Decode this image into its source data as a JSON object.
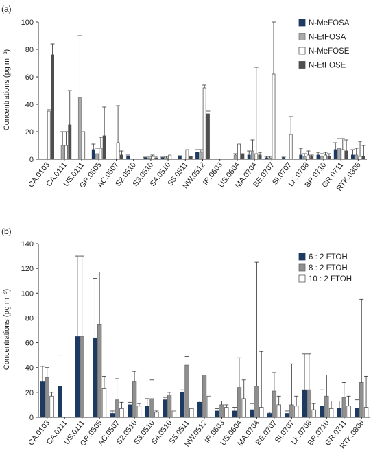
{
  "chart_data": [
    {
      "type": "bar",
      "panel_label": "(a)",
      "ylabel": "Concentrations (pg m⁻³)",
      "ylim": [
        0,
        100
      ],
      "yticks": [
        "0",
        "20",
        "40",
        "60",
        "80",
        "100"
      ],
      "categories": [
        "CA.0103",
        "CA.0111",
        "US.0111",
        "GR.0505",
        "AC.0507",
        "S2.0510",
        "S3.0510",
        "S4.0510",
        "S5.0511",
        "NW.0512",
        "IR.0603",
        "US.0604",
        "MA.0704",
        "BE.0707",
        "SI.0707",
        "LK.0708",
        "BR.0710",
        "GR.0711",
        "RTK.0806"
      ],
      "legend_position": "top-right",
      "series": [
        {
          "name": "N-MeFOSA",
          "color": "#1d3a63",
          "edge": "#1d3a63",
          "values": [
            0,
            0,
            0,
            7,
            0,
            2,
            1,
            1,
            2,
            5,
            0,
            0,
            3,
            1,
            1,
            3,
            3,
            7,
            3
          ],
          "err": [
            0,
            0,
            0,
            4,
            0,
            1,
            0.5,
            0.5,
            0.5,
            2,
            0,
            0,
            3,
            1,
            0.5,
            5,
            2,
            5,
            4
          ]
        },
        {
          "name": "N-EtFOSA",
          "color": "#a9a9a9",
          "edge": "#7a7a7a",
          "values": [
            0,
            10,
            45,
            4,
            0,
            0,
            1,
            1,
            0,
            5,
            0,
            3,
            6,
            1,
            0,
            2,
            2,
            8,
            3
          ],
          "err": [
            0,
            10,
            45,
            4,
            0,
            0,
            1,
            1,
            0,
            2,
            0,
            1,
            8,
            1,
            0,
            2,
            2,
            7,
            5
          ]
        },
        {
          "name": "N-MeFOSE",
          "color": "#ffffff",
          "edge": "#555555",
          "values": [
            35,
            10,
            20,
            8,
            12,
            0,
            2,
            3,
            7,
            52,
            0,
            11,
            4,
            62,
            18,
            3,
            3,
            7,
            2
          ],
          "err": [
            1,
            10,
            0,
            8,
            27,
            0,
            1,
            0,
            0,
            2,
            0,
            0,
            63,
            38,
            13,
            3,
            2,
            8,
            11
          ]
        },
        {
          "name": "N-EtFOSE",
          "color": "#4e4e4e",
          "edge": "#4e4e4e",
          "values": [
            76,
            25,
            0,
            17,
            3,
            0,
            1,
            0,
            2,
            33,
            0,
            4,
            3,
            0,
            0,
            2,
            2,
            6,
            2
          ],
          "err": [
            8,
            25,
            0,
            21,
            3,
            0,
            1,
            0,
            0,
            2,
            0,
            0,
            2,
            0,
            0,
            1,
            2,
            8,
            8
          ]
        }
      ]
    },
    {
      "type": "bar",
      "panel_label": "(b)",
      "ylabel": "Concentrations (pg m⁻³)",
      "ylim": [
        0,
        140
      ],
      "yticks": [
        "0",
        "20",
        "40",
        "60",
        "80",
        "100",
        "120",
        "140"
      ],
      "categories": [
        "CA.0103",
        "CA.0111",
        "US.0111",
        "GR.0505",
        "AC.0507",
        "S2.0510",
        "S3.0510",
        "S4.0510",
        "S5.0511",
        "NW.0512",
        "IR.0603",
        "US.0604",
        "MA.0704",
        "BE.0707",
        "SI.0707",
        "LK.0708",
        "BR.0710",
        "GR.0711",
        "RTK.0806"
      ],
      "legend_position": "top-right",
      "series": [
        {
          "name": "6 : 2 FTOH",
          "color": "#1d3a63",
          "edge": "#1d3a63",
          "values": [
            29,
            25,
            65,
            64,
            3,
            10,
            9,
            14,
            20,
            12,
            5,
            5,
            6,
            3,
            3,
            22,
            9,
            7,
            7
          ],
          "err": [
            12,
            25,
            65,
            48,
            2,
            2,
            6,
            2,
            2,
            1,
            2,
            3,
            5,
            1,
            2,
            29,
            13,
            6,
            7
          ]
        },
        {
          "name": "8 : 2 FTOH",
          "color": "#8f8f8f",
          "edge": "#6a6a6a",
          "values": [
            32,
            0,
            65,
            75,
            14,
            29,
            15,
            18,
            42,
            34,
            10,
            24,
            25,
            21,
            10,
            22,
            17,
            16,
            28
          ],
          "err": [
            8,
            0,
            65,
            42,
            17,
            8,
            15,
            2,
            7,
            0,
            3,
            24,
            100,
            15,
            33,
            29,
            17,
            12,
            67
          ]
        },
        {
          "name": "10 : 2 FTOH",
          "color": "#ffffff",
          "edge": "#555555",
          "values": [
            17,
            0,
            0,
            23,
            7,
            9,
            4,
            5,
            7,
            17,
            8,
            15,
            8,
            10,
            9,
            6,
            7,
            9,
            8
          ],
          "err": [
            3,
            0,
            0,
            10,
            5,
            2,
            1,
            0,
            0,
            0,
            2,
            15,
            45,
            7,
            8,
            5,
            6,
            8,
            25
          ]
        }
      ]
    }
  ]
}
